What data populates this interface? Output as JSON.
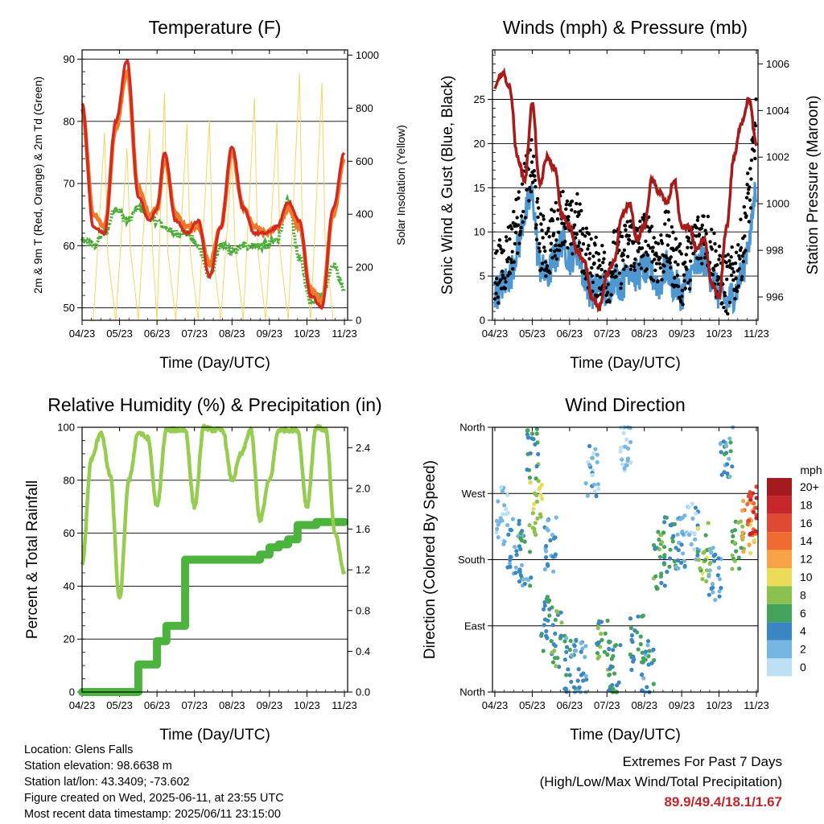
{
  "colors": {
    "temp_2m": "#d42a20",
    "temp_9m": "#f07a2a",
    "dewpoint": "#4cae3a",
    "solar": "#f5d561",
    "pressure": "#a81b1b",
    "wind": "#4f97d1",
    "gust": "#000000",
    "rh": "#96cd50",
    "precip": "#4cb33e",
    "extremes": "#c0272d"
  },
  "x_ticks": [
    "04/23",
    "05/23",
    "06/23",
    "07/23",
    "08/23",
    "09/23",
    "10/23",
    "11/23"
  ],
  "panels": {
    "temperature": {
      "title": "Temperature (F)",
      "xlabel": "Time (Day/UTC)",
      "ylabel_left": "2m & 9m T (Red, Orange) & 2m Td (Green)",
      "ylabel_right": "Solar Insolation (Yellow)",
      "yticks_left": [
        "50",
        "60",
        "70",
        "80",
        "90"
      ],
      "yticks_right": [
        "0",
        "200",
        "400",
        "600",
        "800",
        "1000"
      ]
    },
    "winds": {
      "title": "Winds (mph) & Pressure (mb)",
      "xlabel": "Time (Day/UTC)",
      "ylabel_left": "Sonic Wind & Gust (Blue, Black)",
      "ylabel_right": "Station Pressure (Maroon)",
      "yticks_left": [
        "0",
        "5",
        "10",
        "15",
        "20",
        "25"
      ],
      "yticks_right": [
        "996",
        "998",
        "1000",
        "1002",
        "1004",
        "1006"
      ]
    },
    "humidity": {
      "title": "Relative Humidity (%) & Precipitation (in)",
      "xlabel": "Time (Day/UTC)",
      "ylabel_left": "Percent & Total Rainfall",
      "yticks_left": [
        "0",
        "20",
        "40",
        "60",
        "80",
        "100"
      ],
      "yticks_right": [
        "0.0",
        "0.4",
        "0.8",
        "1.2",
        "1.6",
        "2.0",
        "2.4"
      ]
    },
    "direction": {
      "title": "Wind Direction",
      "xlabel": "Time (Day/UTC)",
      "ylabel_left": "Direction (Colored By Speed)",
      "yticks_left": [
        "North",
        "East",
        "South",
        "West",
        "North"
      ],
      "legend_title": "mph",
      "legend_labels": [
        "20+",
        "18",
        "16",
        "14",
        "12",
        "10",
        "8",
        "6",
        "4",
        "2",
        "0"
      ],
      "legend_colors": [
        "#a31a1f",
        "#c7262a",
        "#e04a33",
        "#ee6b31",
        "#f6a348",
        "#eadb58",
        "#8cc150",
        "#43a35a",
        "#3a87c4",
        "#76b6e2",
        "#bde0f5"
      ]
    }
  },
  "station_info": [
    "Location: Glens Falls",
    "Station elevation: 98.6638 m",
    "Station lat/lon: 43.3409; -73.602",
    "Figure created on Wed, 2025-06-11, at 23:55 UTC",
    "Most recent data timestamp: 2025/06/11 23:15:00"
  ],
  "extremes": {
    "title": "Extremes For Past 7 Days",
    "subtitle": "(High/Low/Max Wind/Total Precipitation)",
    "values": "89.9/49.4/18.1/1.67"
  },
  "chart_data": [
    {
      "type": "line",
      "name": "temperature",
      "x_days": [
        0.0,
        0.3,
        0.6,
        0.9,
        1.2,
        1.5,
        1.8,
        2.0,
        2.2,
        2.5,
        2.8,
        3.1,
        3.4,
        3.7,
        4.0,
        4.3,
        4.6,
        4.9,
        5.2,
        5.5,
        5.8,
        6.1,
        6.4,
        6.7,
        7.0
      ],
      "series": [
        {
          "name": "2m T",
          "ylim": [
            48,
            91
          ],
          "values": [
            83,
            63,
            62,
            80,
            89.9,
            68,
            64,
            66,
            75,
            64,
            62,
            64,
            55,
            63,
            76,
            66,
            62,
            62,
            63,
            67,
            64,
            52,
            50,
            66,
            75
          ]
        },
        {
          "name": "9m T",
          "ylim": [
            48,
            91
          ],
          "values": [
            82,
            65,
            63,
            79,
            88,
            69,
            65,
            66,
            74,
            65,
            63,
            63,
            57,
            63,
            75,
            66,
            63,
            62,
            63,
            66,
            63,
            53,
            51,
            65,
            74
          ]
        },
        {
          "name": "2m Td",
          "ylim": [
            48,
            91
          ],
          "values": [
            61,
            60,
            62,
            66,
            64,
            66,
            65,
            64,
            63,
            62,
            62,
            60,
            55,
            60,
            59,
            60,
            60,
            60,
            61,
            67,
            58,
            51,
            52,
            57,
            53
          ]
        },
        {
          "name": "Solar Insolation",
          "ylim": [
            0,
            1020
          ],
          "values": [
            0,
            0,
            820,
            0,
            900,
            0,
            850,
            0,
            860,
            0,
            850,
            0,
            870,
            0,
            900,
            0,
            880,
            0,
            850,
            0,
            1000,
            0,
            1000,
            0,
            0
          ]
        }
      ]
    },
    {
      "type": "line",
      "name": "winds",
      "x_days": [
        0.0,
        0.2,
        0.4,
        0.6,
        0.8,
        1.0,
        1.2,
        1.4,
        1.6,
        1.8,
        2.0,
        2.2,
        2.4,
        2.6,
        2.8,
        3.0,
        3.2,
        3.4,
        3.6,
        3.8,
        4.0,
        4.2,
        4.4,
        4.6,
        4.8,
        5.0,
        5.2,
        5.4,
        5.6,
        5.8,
        6.0,
        6.2,
        6.4,
        6.6,
        6.8,
        7.0
      ],
      "series": [
        {
          "name": "Wind",
          "ylim": [
            0,
            30
          ],
          "values": [
            3,
            4,
            5,
            8,
            12,
            14,
            6,
            5,
            7,
            9,
            7,
            8,
            5,
            3,
            4,
            3,
            5,
            4,
            6,
            5,
            6,
            5,
            4,
            6,
            4,
            3,
            5,
            6,
            7,
            5,
            3,
            2,
            3,
            5,
            9,
            15
          ]
        },
        {
          "name": "Gust",
          "ylim": [
            0,
            30
          ],
          "values": [
            5,
            6,
            8,
            11,
            15,
            17,
            9,
            8,
            10,
            12,
            10,
            11,
            8,
            6,
            6,
            5,
            7,
            7,
            9,
            8,
            9,
            8,
            7,
            9,
            7,
            5,
            7,
            9,
            10,
            8,
            5,
            4,
            5,
            8,
            14,
            22
          ]
        },
        {
          "name": "Station Pressure",
          "ylim": [
            995,
            1006.5
          ],
          "values": [
            1005.0,
            1005.6,
            1005.0,
            1002.0,
            1001.0,
            1004.3,
            1000.8,
            1002.0,
            1001.5,
            999.5,
            999.0,
            998.0,
            997.5,
            996.0,
            995.5,
            997.0,
            997.5,
            999.5,
            1000.0,
            998.5,
            999.0,
            1001.0,
            1000.5,
            1000.0,
            1001.0,
            999.0,
            999.0,
            998.0,
            998.5,
            996.5,
            996.0,
            999.0,
            1002.0,
            1003.5,
            1004.5,
            1002.5
          ]
        }
      ]
    },
    {
      "type": "line",
      "name": "humidity",
      "x_days": [
        0.0,
        0.25,
        0.5,
        0.75,
        1.0,
        1.25,
        1.5,
        1.75,
        2.0,
        2.25,
        2.5,
        2.75,
        3.0,
        3.25,
        3.5,
        3.75,
        4.0,
        4.25,
        4.5,
        4.75,
        5.0,
        5.25,
        5.5,
        5.75,
        6.0,
        6.25,
        6.5,
        6.75,
        7.0
      ],
      "series": [
        {
          "name": "Relative Humidity",
          "ylim": [
            0,
            100
          ],
          "values": [
            48,
            88,
            98,
            82,
            35,
            80,
            98,
            96,
            70,
            99,
            99,
            99,
            70,
            100,
            99,
            99,
            80,
            90,
            99,
            65,
            80,
            99,
            99,
            99,
            70,
            100,
            99,
            60,
            45
          ]
        },
        {
          "name": "Total Precipitation",
          "ylim": [
            0,
            2.6
          ],
          "values": [
            0.0,
            0.0,
            0.0,
            0.0,
            0.0,
            0.0,
            0.27,
            0.27,
            0.5,
            0.65,
            0.65,
            1.3,
            1.3,
            1.3,
            1.3,
            1.3,
            1.3,
            1.3,
            1.3,
            1.35,
            1.42,
            1.45,
            1.5,
            1.64,
            1.64,
            1.67,
            1.67,
            1.67,
            1.67
          ]
        }
      ]
    },
    {
      "type": "scatter",
      "name": "direction",
      "x_days": [
        0.2,
        0.5,
        0.8,
        1.0,
        1.1,
        1.4,
        1.5,
        1.7,
        2.0,
        2.3,
        2.6,
        2.9,
        3.2,
        3.5,
        3.8,
        4.1,
        4.4,
        4.7,
        5.0,
        5.3,
        5.6,
        5.9,
        6.2,
        6.5,
        6.8,
        6.95
      ],
      "y_deg": [
        240,
        200,
        180,
        320,
        250,
        90,
        200,
        70,
        40,
        30,
        300,
        60,
        30,
        340,
        70,
        30,
        180,
        200,
        200,
        220,
        190,
        160,
        330,
        200,
        220,
        250
      ],
      "speed": [
        1,
        3,
        4,
        6,
        9,
        5,
        3,
        6,
        4,
        3,
        2,
        6,
        5,
        1,
        5,
        4,
        6,
        5,
        3,
        2,
        8,
        3,
        4,
        7,
        12,
        16
      ]
    }
  ]
}
